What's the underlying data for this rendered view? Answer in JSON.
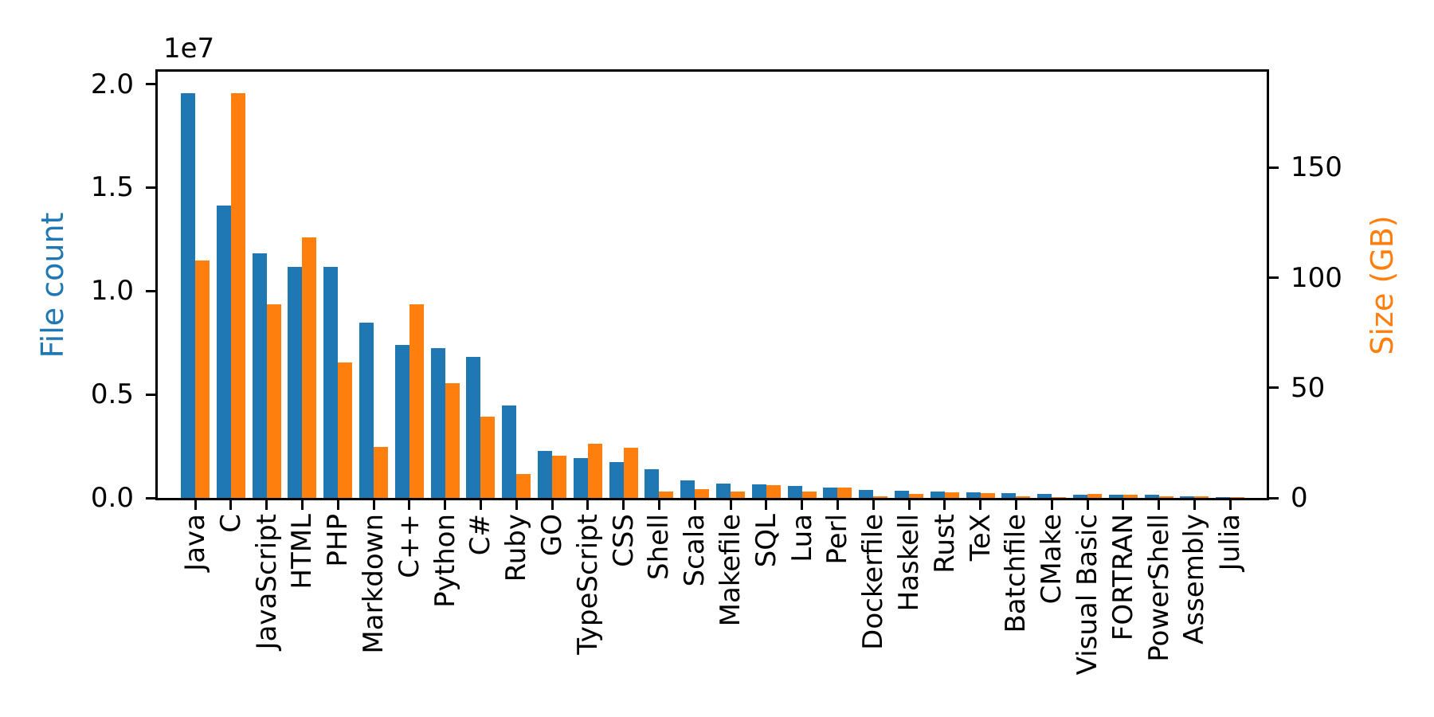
{
  "figure": {
    "background": "#ffffff",
    "spine_color": "#000000",
    "text_color": "#000000"
  },
  "chart_data": {
    "type": "bar",
    "title": "",
    "xlabel": "",
    "grid": false,
    "legend": "none",
    "categories": [
      "Java",
      "C",
      "JavaScript",
      "HTML",
      "PHP",
      "Markdown",
      "C++",
      "Python",
      "C#",
      "Ruby",
      "GO",
      "TypeScript",
      "CSS",
      "Shell",
      "Scala",
      "Makefile",
      "SQL",
      "Lua",
      "Perl",
      "Dockerfile",
      "Haskell",
      "Rust",
      "TeX",
      "Batchfile",
      "CMake",
      "Visual Basic",
      "FORTRAN",
      "PowerShell",
      "Assembly",
      "Julia"
    ],
    "series": [
      {
        "name": "File count",
        "axis": "left",
        "color": "#1f77b4",
        "values": [
          19548190,
          14143113,
          11839883,
          11178557,
          11177610,
          8464626,
          7380520,
          7226626,
          6811652,
          4473331,
          2265436,
          1940406,
          1734406,
          1385648,
          835755,
          679430,
          656671,
          578554,
          497949,
          366505,
          340240,
          322431,
          251015,
          236945,
          175282,
          155652,
          142038,
          136846,
          82905,
          58317
        ]
      },
      {
        "name": "Size (GB)",
        "axis": "right",
        "color": "#ff7f0e",
        "values": [
          107.7,
          183.83,
          87.82,
          118.12,
          61.41,
          23.09,
          87.73,
          52.03,
          36.83,
          10.95,
          19.28,
          24.59,
          22.67,
          3.01,
          3.87,
          2.92,
          5.67,
          2.81,
          4.7,
          0.71,
          1.85,
          2.68,
          2.15,
          0.7,
          0.54,
          1.91,
          1.62,
          0.69,
          0.78,
          0.29
        ]
      }
    ],
    "left_axis": {
      "label": "File count",
      "color": "#1f77b4",
      "offset_text": "1e7",
      "tick_values": [
        0,
        5000000,
        10000000,
        15000000,
        20000000
      ],
      "tick_labels": [
        "0.0",
        "0.5",
        "1.0",
        "1.5",
        "2.0"
      ],
      "range": [
        0,
        20600000
      ]
    },
    "right_axis": {
      "label": "Size (GB)",
      "color": "#ff7f0e",
      "tick_values": [
        0,
        50,
        100,
        150
      ],
      "tick_labels": [
        "0",
        "50",
        "100",
        "150"
      ],
      "range": [
        0,
        193.5
      ]
    }
  }
}
